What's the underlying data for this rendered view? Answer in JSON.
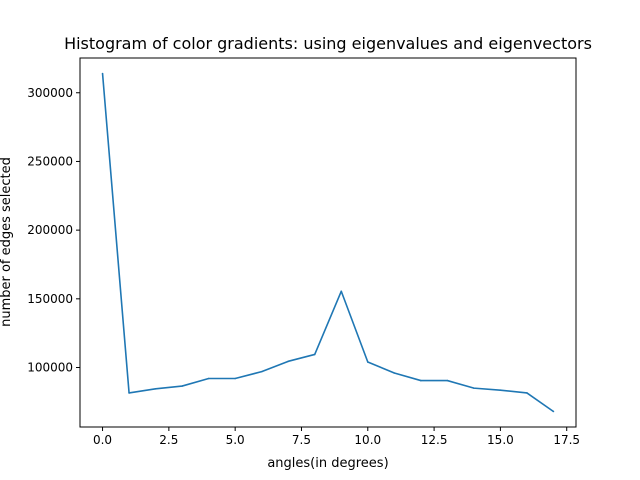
{
  "chart_data": {
    "type": "line",
    "title": "Histogram of color gradients: using eigenvalues and eigenvectors",
    "xlabel": "angles(in degrees)",
    "ylabel": "number of edges selected",
    "x": [
      0,
      1,
      2,
      3,
      4,
      5,
      6,
      7,
      8,
      9,
      10,
      11,
      12,
      13,
      14,
      15,
      16,
      17
    ],
    "series": [
      {
        "color": "#1f77b4",
        "values": [
          314000,
          81500,
          84500,
          86500,
          92000,
          92000,
          97000,
          104500,
          109500,
          155500,
          104000,
          96000,
          90500,
          90500,
          85000,
          83500,
          81500,
          68000
        ]
      }
    ],
    "xlim": [
      -0.85,
      17.85
    ],
    "ylim": [
      56700,
      325300
    ],
    "xticks": [
      0.0,
      2.5,
      5.0,
      7.5,
      10.0,
      12.5,
      15.0,
      17.5
    ],
    "xtick_labels": [
      "0.0",
      "2.5",
      "5.0",
      "7.5",
      "10.0",
      "12.5",
      "15.0",
      "17.5"
    ],
    "yticks": [
      100000,
      150000,
      200000,
      250000,
      300000
    ],
    "ytick_labels": [
      "100000",
      "150000",
      "200000",
      "250000",
      "300000"
    ],
    "grid": false,
    "legend": "none"
  }
}
